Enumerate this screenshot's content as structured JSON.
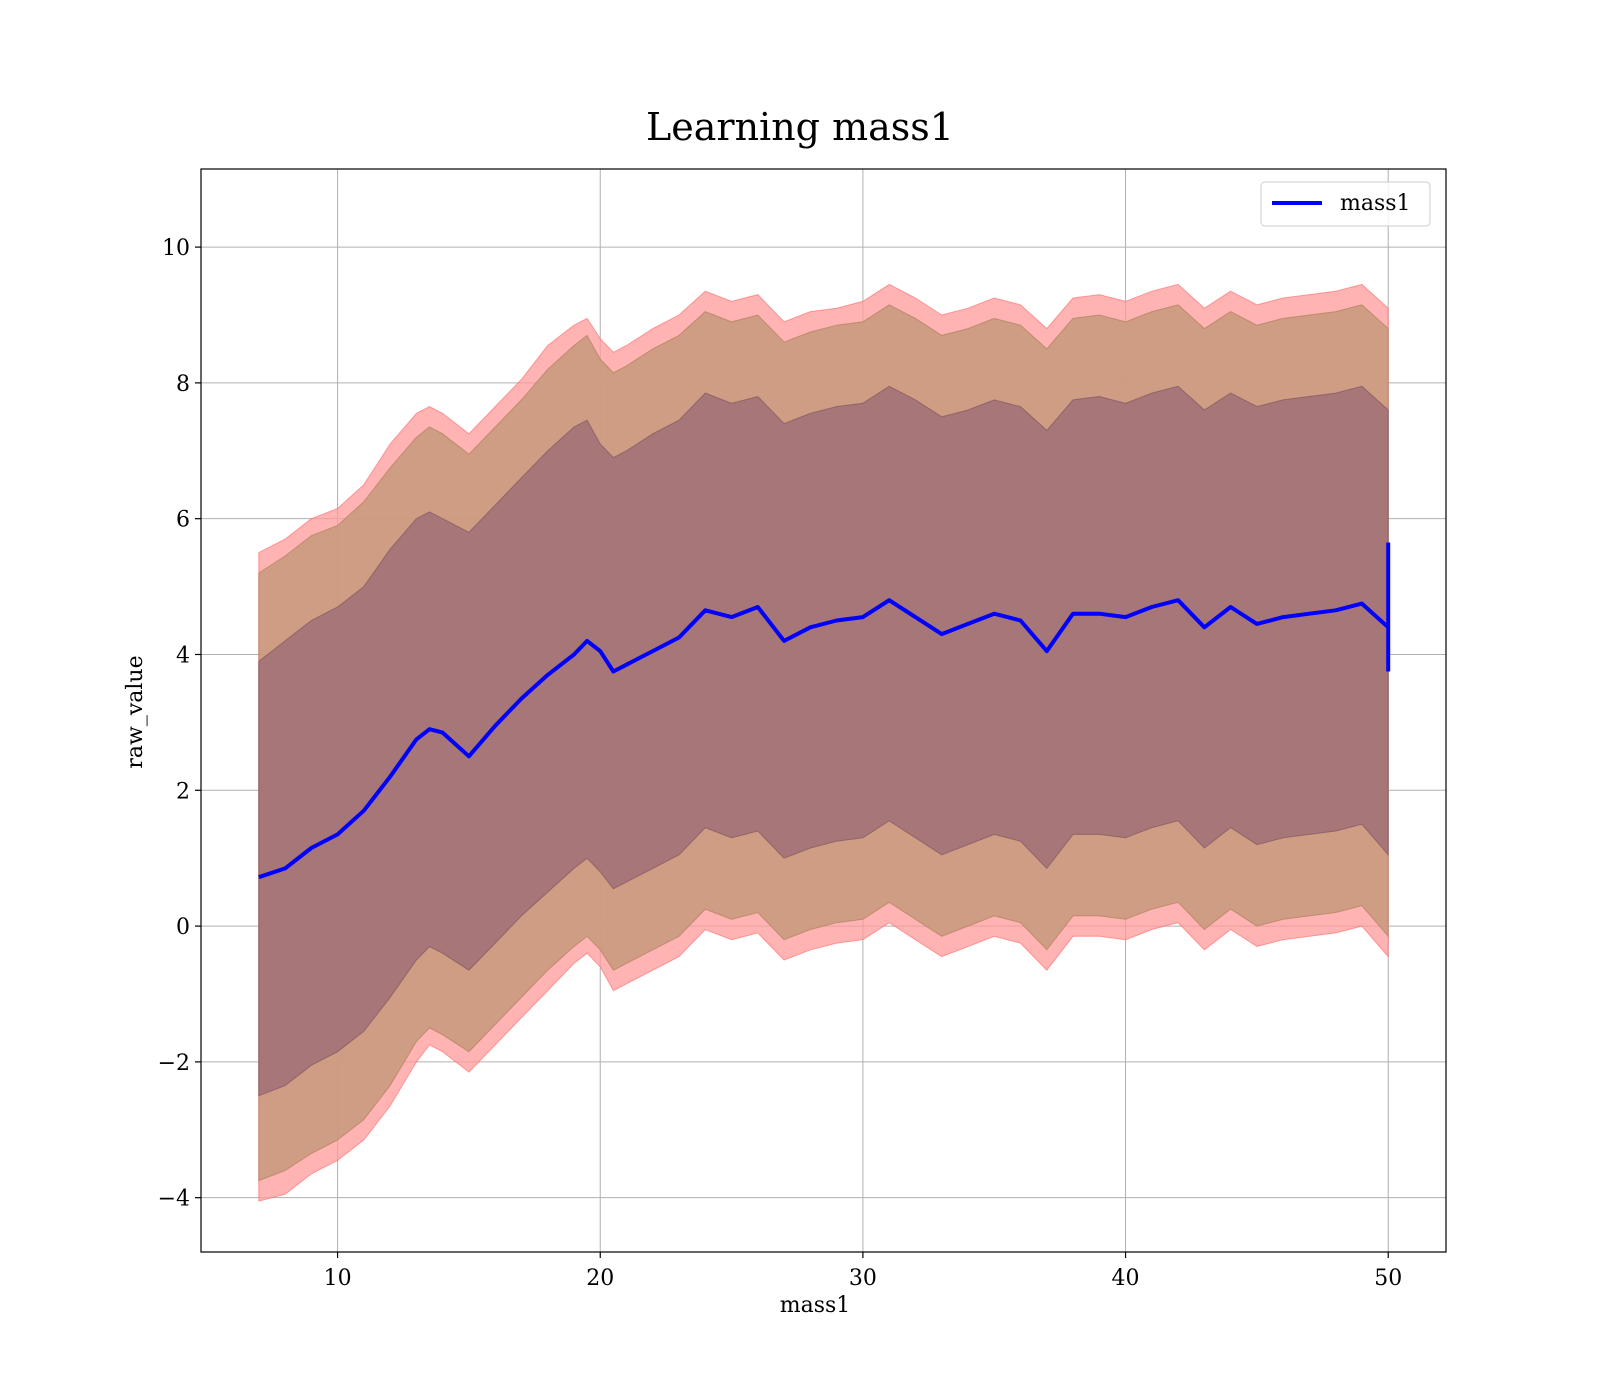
{
  "chart_data": {
    "type": "area",
    "title": "Learning mass1",
    "xlabel": "mass1",
    "ylabel": "raw_value",
    "xlim": [
      4.8,
      52.2
    ],
    "ylim": [
      -4.8,
      11.15
    ],
    "xticks": [
      10,
      20,
      30,
      40,
      50
    ],
    "yticks": [
      -4,
      -2,
      0,
      2,
      4,
      6,
      8,
      10
    ],
    "xtick_labels": [
      "10",
      "20",
      "30",
      "40",
      "50"
    ],
    "ytick_labels": [
      "−4",
      "−2",
      "0",
      "2",
      "4",
      "6",
      "8",
      "10"
    ],
    "grid": true,
    "legend": {
      "position": "top-right",
      "entries": [
        "mass1"
      ]
    },
    "colors": {
      "line": "#0000ff",
      "band_outer": "#ff9999",
      "band_outer_edge": "#ff6666",
      "band_middle": "#c99a7d",
      "band_middle_edge": "#a87a55",
      "band_inner": "#a07078",
      "band_inner_edge": "#7a4c5c",
      "grid": "#b0b0b0"
    },
    "x": [
      7,
      8,
      9,
      10,
      11,
      12,
      13,
      13.5,
      14,
      15,
      16,
      17,
      18,
      19,
      19.5,
      20,
      20.5,
      21,
      22,
      23,
      24,
      25,
      26,
      27,
      28,
      29,
      30,
      31,
      32,
      33,
      34,
      35,
      36,
      37,
      38,
      39,
      40,
      41,
      42,
      43,
      44,
      45,
      46,
      47,
      48,
      49,
      50
    ],
    "series": [
      {
        "name": "mass1",
        "values": [
          0.72,
          0.85,
          1.15,
          1.35,
          1.7,
          2.2,
          2.75,
          2.9,
          2.85,
          2.5,
          2.95,
          3.35,
          3.7,
          4.0,
          4.2,
          4.05,
          3.75,
          3.85,
          4.05,
          4.25,
          4.65,
          4.55,
          4.7,
          4.2,
          4.4,
          4.5,
          4.55,
          4.8,
          4.55,
          4.3,
          4.45,
          4.6,
          4.5,
          4.05,
          4.6,
          4.6,
          4.55,
          4.7,
          4.8,
          4.4,
          4.7,
          4.45,
          4.55,
          4.6,
          4.65,
          4.75,
          4.4
        ]
      }
    ],
    "bands": [
      {
        "upper": [
          5.5,
          5.7,
          6.0,
          6.15,
          6.5,
          7.1,
          7.55,
          7.65,
          7.55,
          7.25,
          7.65,
          8.05,
          8.55,
          8.85,
          8.95,
          8.65,
          8.45,
          8.55,
          8.8,
          9.0,
          9.35,
          9.2,
          9.3,
          8.9,
          9.05,
          9.1,
          9.2,
          9.45,
          9.25,
          9.0,
          9.1,
          9.25,
          9.15,
          8.8,
          9.25,
          9.3,
          9.2,
          9.35,
          9.45,
          9.1,
          9.35,
          9.15,
          9.25,
          9.3,
          9.35,
          9.45,
          9.1
        ],
        "lower": [
          -4.05,
          -3.95,
          -3.65,
          -3.45,
          -3.15,
          -2.65,
          -2.0,
          -1.75,
          -1.85,
          -2.15,
          -1.75,
          -1.35,
          -0.95,
          -0.55,
          -0.4,
          -0.6,
          -0.95,
          -0.85,
          -0.65,
          -0.45,
          -0.05,
          -0.2,
          -0.1,
          -0.5,
          -0.35,
          -0.25,
          -0.2,
          0.05,
          -0.2,
          -0.45,
          -0.3,
          -0.15,
          -0.25,
          -0.65,
          -0.15,
          -0.15,
          -0.2,
          -0.05,
          0.05,
          -0.35,
          -0.05,
          -0.3,
          -0.2,
          -0.15,
          -0.1,
          0.0,
          -0.45
        ]
      },
      {
        "upper": [
          5.2,
          5.45,
          5.75,
          5.9,
          6.25,
          6.75,
          7.2,
          7.35,
          7.25,
          6.95,
          7.35,
          7.75,
          8.2,
          8.55,
          8.7,
          8.35,
          8.15,
          8.25,
          8.5,
          8.7,
          9.05,
          8.9,
          9.0,
          8.6,
          8.75,
          8.85,
          8.9,
          9.15,
          8.95,
          8.7,
          8.8,
          8.95,
          8.85,
          8.5,
          8.95,
          9.0,
          8.9,
          9.05,
          9.15,
          8.8,
          9.05,
          8.85,
          8.95,
          9.0,
          9.05,
          9.15,
          8.8
        ],
        "lower": [
          -3.75,
          -3.6,
          -3.35,
          -3.15,
          -2.85,
          -2.35,
          -1.7,
          -1.5,
          -1.6,
          -1.85,
          -1.45,
          -1.05,
          -0.65,
          -0.3,
          -0.15,
          -0.35,
          -0.65,
          -0.55,
          -0.35,
          -0.15,
          0.25,
          0.1,
          0.2,
          -0.2,
          -0.05,
          0.05,
          0.1,
          0.35,
          0.1,
          -0.15,
          0.0,
          0.15,
          0.05,
          -0.35,
          0.15,
          0.15,
          0.1,
          0.25,
          0.35,
          -0.05,
          0.25,
          0.0,
          0.1,
          0.15,
          0.2,
          0.3,
          -0.15
        ]
      },
      {
        "upper": [
          3.9,
          4.2,
          4.5,
          4.7,
          5.0,
          5.55,
          6.0,
          6.1,
          6.0,
          5.8,
          6.2,
          6.6,
          7.0,
          7.35,
          7.45,
          7.1,
          6.9,
          7.0,
          7.25,
          7.45,
          7.85,
          7.7,
          7.8,
          7.4,
          7.55,
          7.65,
          7.7,
          7.95,
          7.75,
          7.5,
          7.6,
          7.75,
          7.65,
          7.3,
          7.75,
          7.8,
          7.7,
          7.85,
          7.95,
          7.6,
          7.85,
          7.65,
          7.75,
          7.8,
          7.85,
          7.95,
          7.6
        ],
        "lower": [
          -2.5,
          -2.35,
          -2.05,
          -1.85,
          -1.55,
          -1.05,
          -0.5,
          -0.3,
          -0.4,
          -0.65,
          -0.25,
          0.15,
          0.5,
          0.85,
          1.0,
          0.8,
          0.55,
          0.65,
          0.85,
          1.05,
          1.45,
          1.3,
          1.4,
          1.0,
          1.15,
          1.25,
          1.3,
          1.55,
          1.3,
          1.05,
          1.2,
          1.35,
          1.25,
          0.85,
          1.35,
          1.35,
          1.3,
          1.45,
          1.55,
          1.15,
          1.45,
          1.2,
          1.3,
          1.35,
          1.4,
          1.5,
          1.05
        ]
      }
    ],
    "end_segment": {
      "x": 50,
      "values": [
        3.75,
        5.65
      ]
    }
  }
}
